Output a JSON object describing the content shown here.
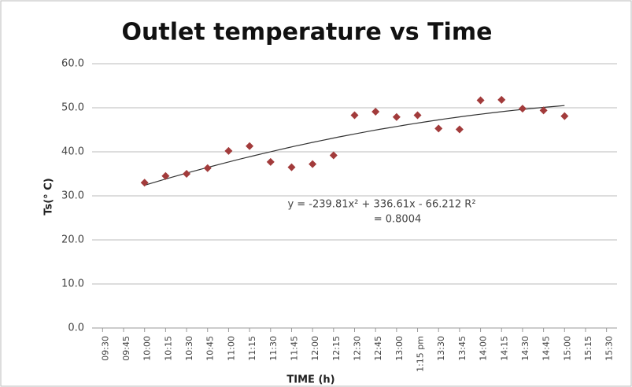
{
  "chart_data": {
    "type": "scatter",
    "title": "Outlet temperature vs Time",
    "x_label": "TIME (h)",
    "y_label": "Ts(° C)",
    "categories": [
      "09:30",
      "09:45",
      "10:00",
      "10:15",
      "10:30",
      "10:45",
      "11:00",
      "11:15",
      "11:30",
      "11:45",
      "12:00",
      "12:15",
      "12:30",
      "12:45",
      "13:00",
      "1:15 pm",
      "13:30",
      "13:45",
      "14:00",
      "14:15",
      "14:30",
      "14:45",
      "15:00",
      "15:15",
      "15:30"
    ],
    "series": [
      {
        "name": "Ts",
        "color": "#a23b3b",
        "values": [
          null,
          null,
          33.0,
          34.5,
          35.0,
          36.3,
          40.2,
          41.3,
          37.7,
          36.5,
          37.2,
          39.2,
          48.3,
          49.1,
          47.9,
          48.3,
          45.3,
          45.1,
          51.7,
          51.8,
          49.8,
          49.4,
          48.1,
          null,
          null
        ]
      }
    ],
    "trendline": {
      "equation": "y = -239.81x² + 336.61x - 66.212 R²",
      "r2": "= 0.8004",
      "coefficients": [
        -239.81,
        336.61,
        -66.212
      ],
      "color": "#333333"
    },
    "ylim": [
      0,
      60
    ],
    "yticks": [
      {
        "value": 0,
        "label": "0.0"
      },
      {
        "value": 10,
        "label": "10.0"
      },
      {
        "value": 20,
        "label": "20.0"
      },
      {
        "value": 30,
        "label": "30.0"
      },
      {
        "value": 40,
        "label": "40.0"
      },
      {
        "value": 50,
        "label": "50.0"
      },
      {
        "value": 60,
        "label": "60.0"
      }
    ],
    "grid": true
  }
}
